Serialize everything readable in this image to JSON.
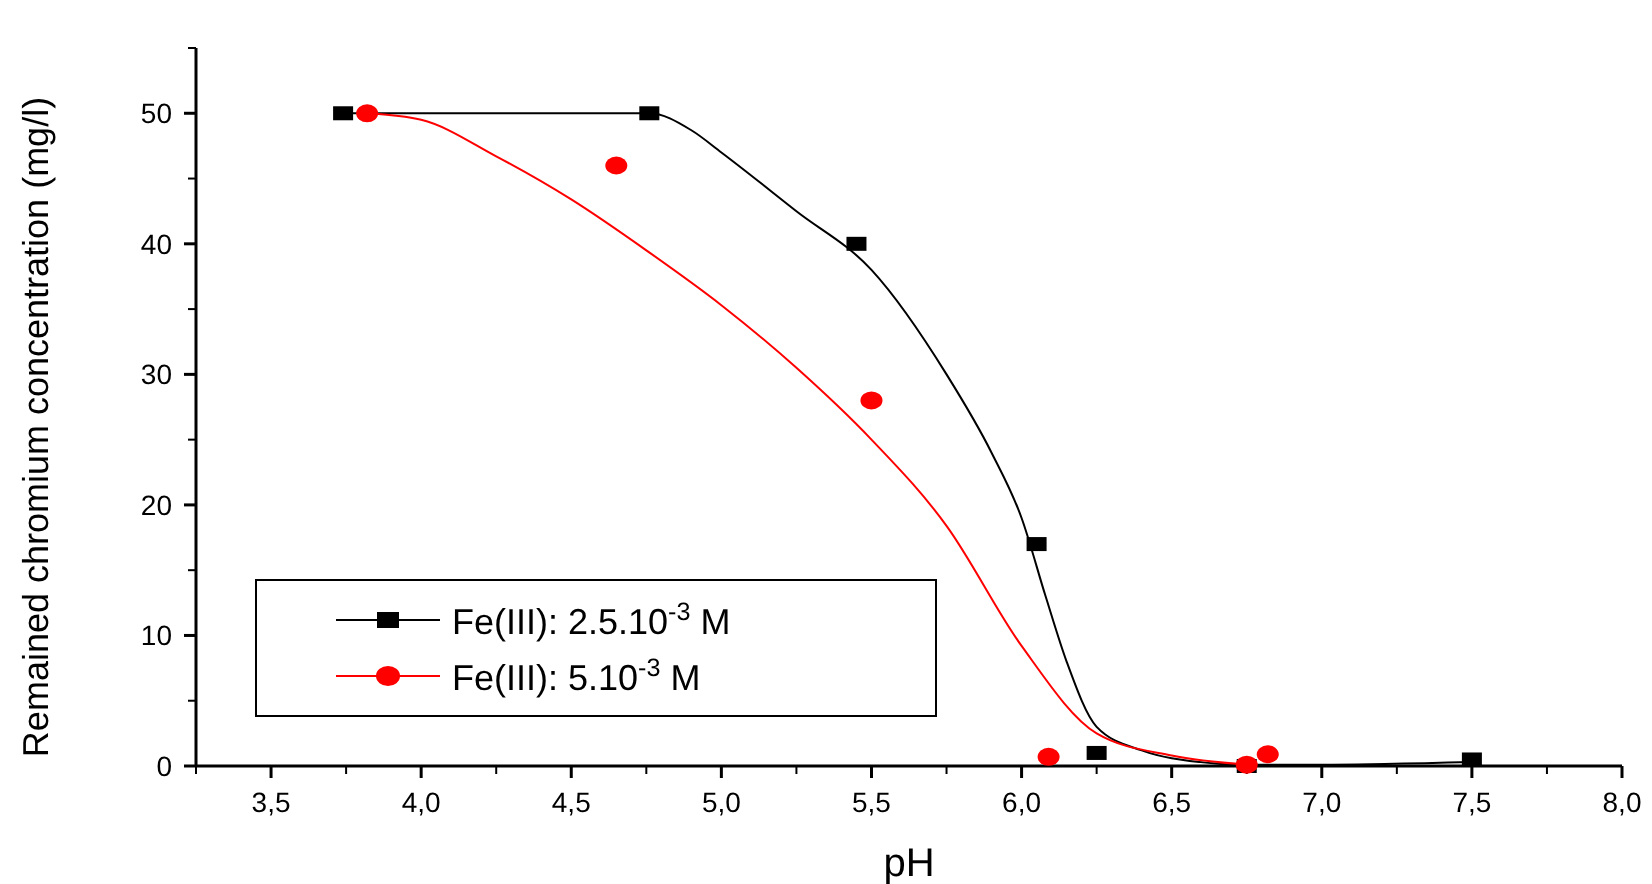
{
  "chart_data": {
    "type": "scatter",
    "xlabel": "pH",
    "ylabel": "Remained chromium concentration (mg/l)",
    "xlim": [
      3.25,
      8.0
    ],
    "ylim": [
      0,
      55
    ],
    "xticks": [
      {
        "value": 3.5,
        "label": "3,5"
      },
      {
        "value": 4.0,
        "label": "4,0"
      },
      {
        "value": 4.5,
        "label": "4,5"
      },
      {
        "value": 5.0,
        "label": "5,0"
      },
      {
        "value": 5.5,
        "label": "5,5"
      },
      {
        "value": 6.0,
        "label": "6,0"
      },
      {
        "value": 6.5,
        "label": "6,5"
      },
      {
        "value": 7.0,
        "label": "7,0"
      },
      {
        "value": 7.5,
        "label": "7,5"
      },
      {
        "value": 8.0,
        "label": "8,0"
      }
    ],
    "yticks": [
      0,
      10,
      20,
      30,
      40,
      50
    ],
    "grid": false,
    "legend": "bottom left",
    "series": [
      {
        "type": "line",
        "color": "#000000",
        "marker": "none",
        "x": [
          3.74,
          4.76,
          4.9,
          5.0,
          5.25,
          5.5,
          5.75,
          5.9,
          6.0,
          6.08,
          6.15,
          6.25,
          6.4,
          6.5,
          6.75,
          7.0,
          7.5
        ],
        "values": [
          50,
          50,
          48.7,
          47,
          42.5,
          38,
          30,
          24,
          19,
          13,
          8,
          3,
          1.2,
          0.6,
          0.1,
          0.1,
          0.3
        ]
      },
      {
        "type": "line",
        "color": "#ff0000",
        "marker": "none",
        "x": [
          3.82,
          4.0,
          4.25,
          4.5,
          4.75,
          5.0,
          5.25,
          5.5,
          5.75,
          6.0,
          6.25,
          6.5,
          6.75
        ],
        "values": [
          50,
          49.5,
          46.7,
          43.4,
          39.5,
          35.3,
          30.5,
          25,
          18.4,
          9.2,
          2.5,
          0.8,
          0.1
        ]
      },
      {
        "name": "Fe(III): 2.5.10$^{-3}$ M",
        "color": "#000000",
        "marker": "square",
        "x": [
          3.74,
          4.76,
          5.45,
          6.05,
          6.25,
          6.75,
          7.5
        ],
        "values": [
          50,
          50,
          40,
          17,
          1,
          0,
          0.5
        ]
      },
      {
        "name": "Fe(III): 5.10$^{-3}$ M",
        "color": "#ff0000",
        "marker": "circle",
        "x": [
          3.82,
          4.65,
          5.5,
          6.09,
          6.75,
          6.82
        ],
        "values": [
          50,
          46,
          28,
          0.7,
          0.1,
          0.9
        ]
      }
    ]
  }
}
